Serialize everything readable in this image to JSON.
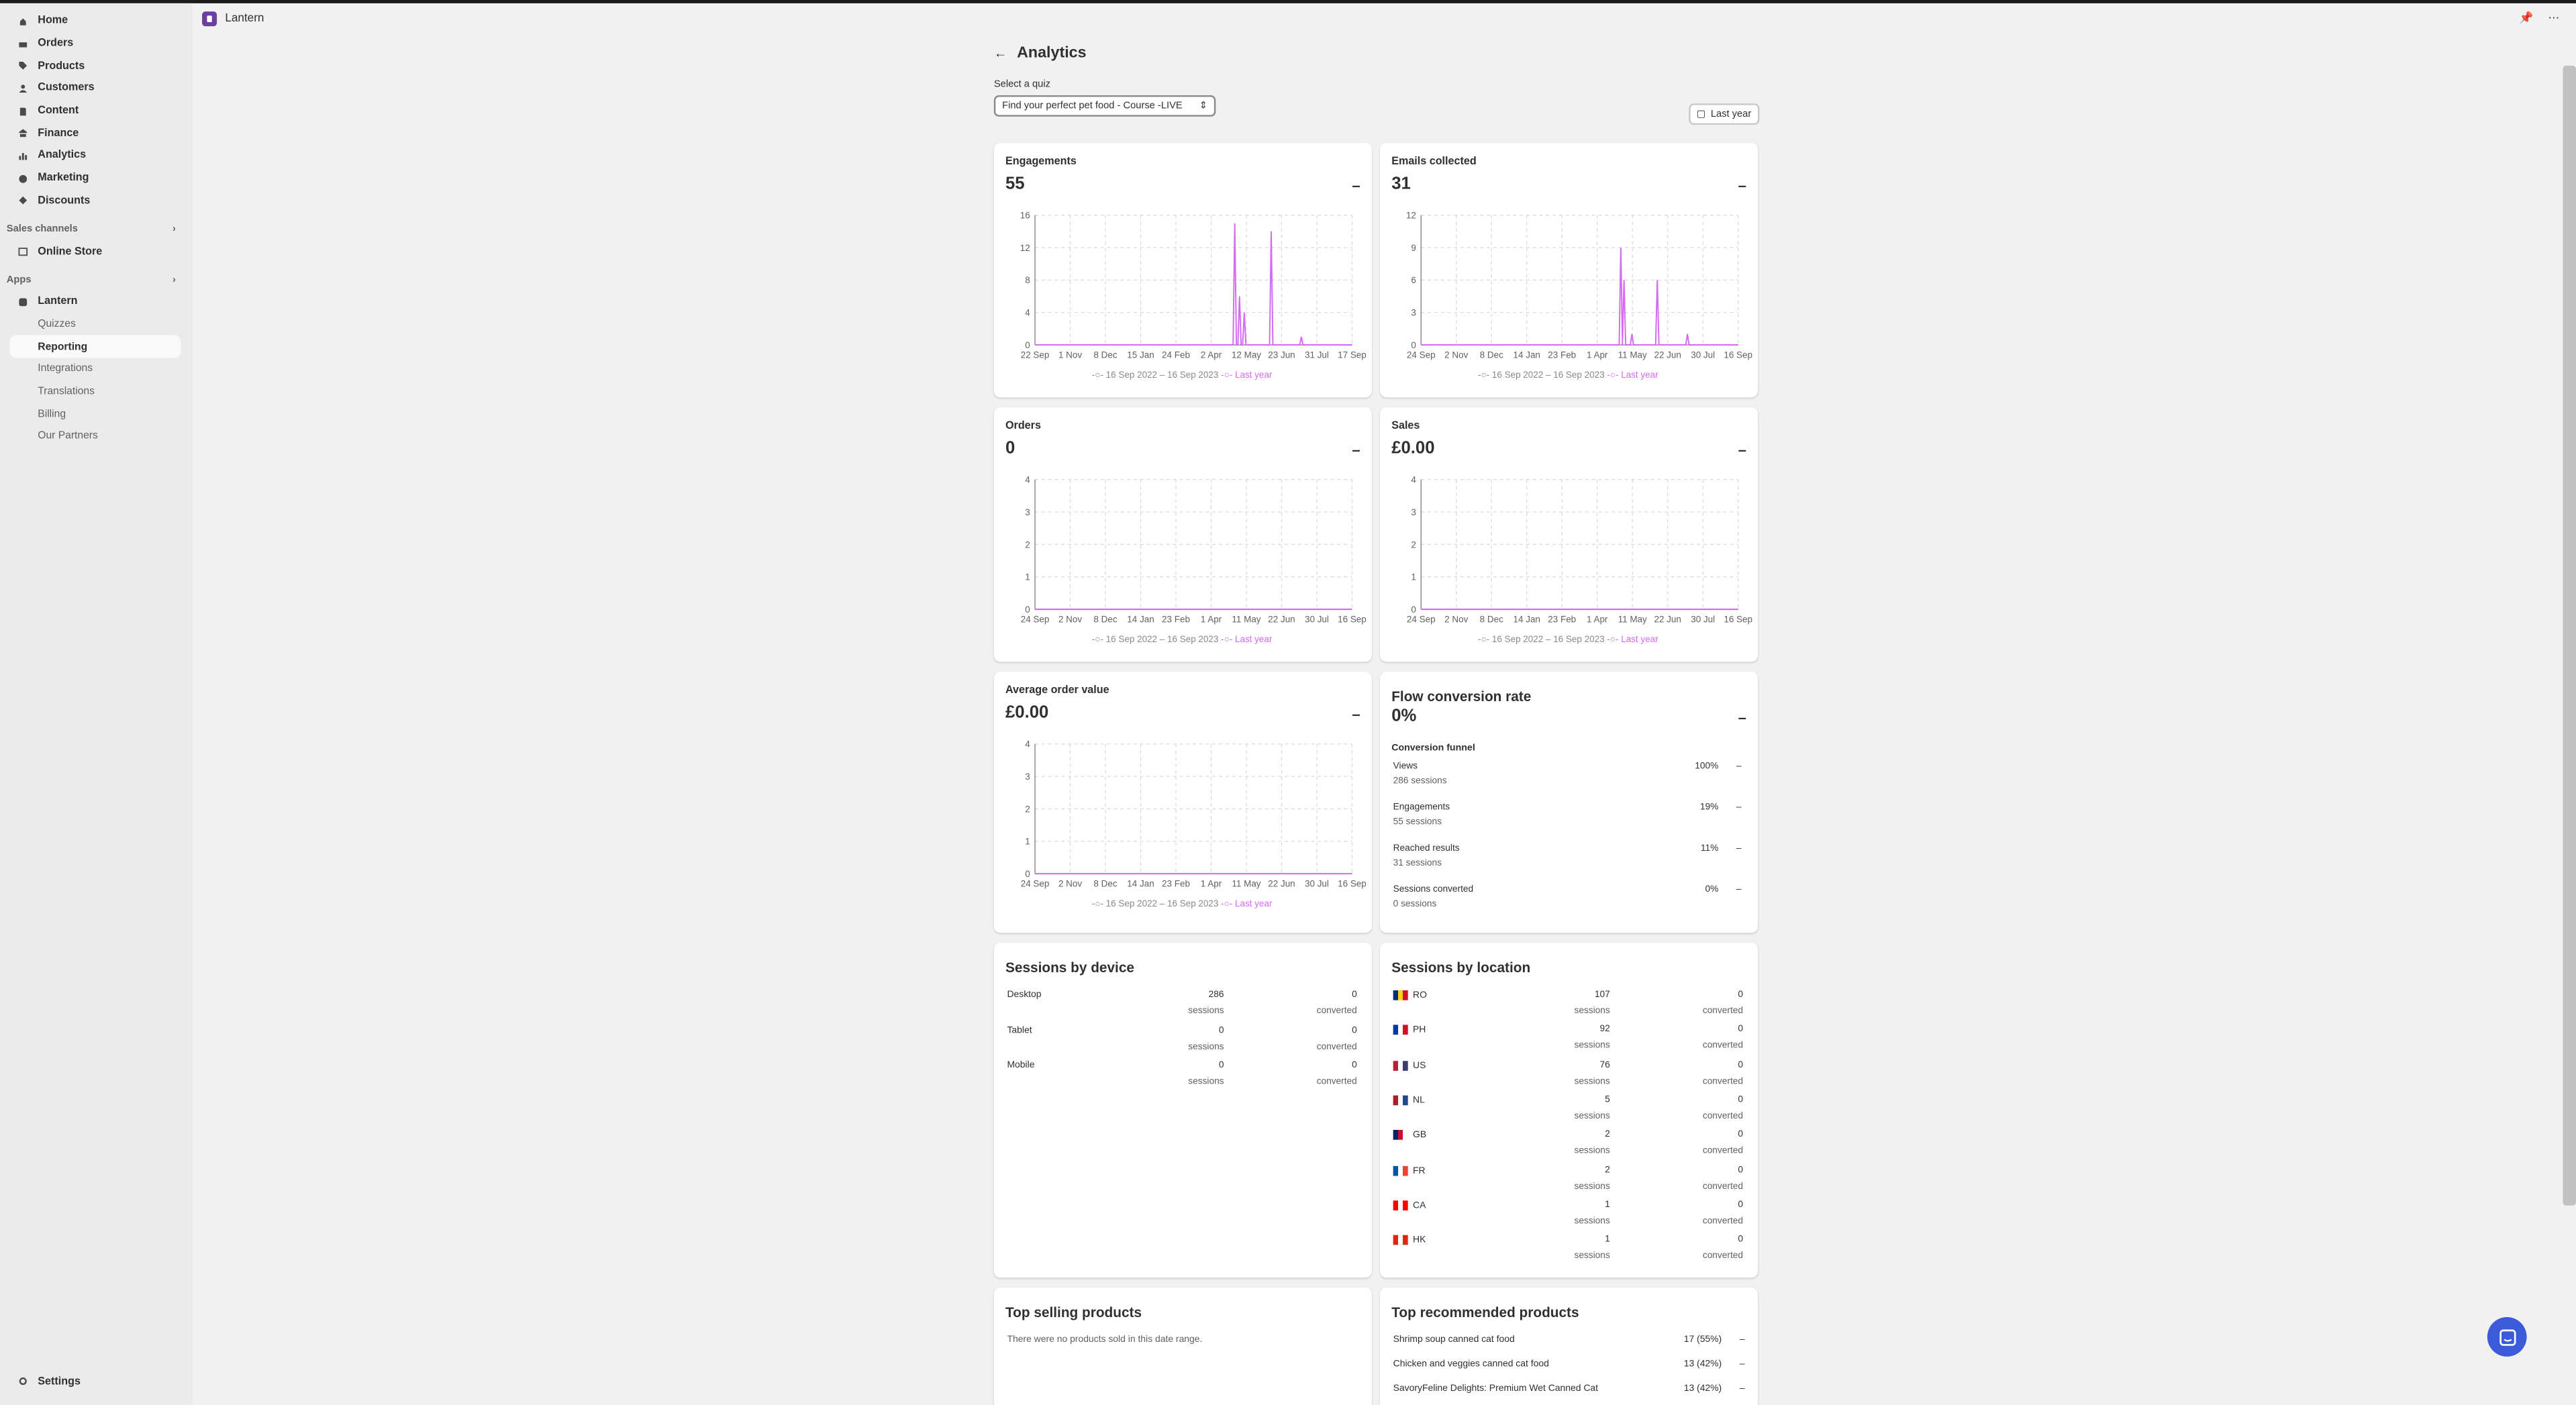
{
  "app": {
    "name": "Lantern"
  },
  "nav": {
    "items": [
      {
        "label": "Home",
        "icon": "home-icon"
      },
      {
        "label": "Orders",
        "icon": "inbox-icon"
      },
      {
        "label": "Products",
        "icon": "tag-icon"
      },
      {
        "label": "Customers",
        "icon": "person-icon"
      },
      {
        "label": "Content",
        "icon": "document-icon"
      },
      {
        "label": "Finance",
        "icon": "bank-icon"
      },
      {
        "label": "Analytics",
        "icon": "bar-chart-icon"
      },
      {
        "label": "Marketing",
        "icon": "target-icon"
      },
      {
        "label": "Discounts",
        "icon": "discount-icon"
      }
    ],
    "sales_channels": "Sales channels",
    "online_store": "Online Store",
    "apps": "Apps",
    "lantern": "Lantern",
    "sub": [
      "Quizzes",
      "Reporting",
      "Integrations",
      "Translations",
      "Billing",
      "Our Partners"
    ],
    "settings": "Settings"
  },
  "page": {
    "title": "Analytics",
    "select_label": "Select a quiz",
    "select_value": "Find your perfect pet food - Course -LIVE",
    "date_range": "Last year"
  },
  "legend": {
    "current": "16 Sep 2022 – 16 Sep 2023",
    "previous": "Last year"
  },
  "cards": {
    "engagements": {
      "title": "Engagements",
      "value": "55"
    },
    "emails": {
      "title": "Emails collected",
      "value": "31"
    },
    "orders": {
      "title": "Orders",
      "value": "0"
    },
    "sales": {
      "title": "Sales",
      "value": "£0.00"
    },
    "aov": {
      "title": "Average order value",
      "value": "£0.00"
    },
    "flow": {
      "title": "Flow conversion rate",
      "value": "0%",
      "funnel_title": "Conversion funnel",
      "rows": [
        {
          "label": "Views",
          "sub": "286 sessions",
          "pct": "100%"
        },
        {
          "label": "Engagements",
          "sub": "55 sessions",
          "pct": "19%"
        },
        {
          "label": "Reached results",
          "sub": "31 sessions",
          "pct": "11%"
        },
        {
          "label": "Sessions converted",
          "sub": "0 sessions",
          "pct": "0%"
        }
      ]
    }
  },
  "devices": {
    "title": "Sessions by device",
    "rows": [
      {
        "label": "Desktop",
        "sessions": "286",
        "converted": "0"
      },
      {
        "label": "Tablet",
        "sessions": "0",
        "converted": "0"
      },
      {
        "label": "Mobile",
        "sessions": "0",
        "converted": "0"
      }
    ],
    "sessions_word": "sessions",
    "converted_word": "converted"
  },
  "locations": {
    "title": "Sessions by location",
    "rows": [
      {
        "code": "RO",
        "sessions": "107",
        "converted": "0"
      },
      {
        "code": "PH",
        "sessions": "92",
        "converted": "0"
      },
      {
        "code": "US",
        "sessions": "76",
        "converted": "0"
      },
      {
        "code": "NL",
        "sessions": "5",
        "converted": "0"
      },
      {
        "code": "GB",
        "sessions": "2",
        "converted": "0"
      },
      {
        "code": "FR",
        "sessions": "2",
        "converted": "0"
      },
      {
        "code": "CA",
        "sessions": "1",
        "converted": "0"
      },
      {
        "code": "HK",
        "sessions": "1",
        "converted": "0"
      }
    ]
  },
  "top_selling": {
    "title": "Top selling products",
    "empty": "There were no products sold in this date range."
  },
  "top_recommended": {
    "title": "Top recommended products",
    "rows": [
      {
        "name": "Shrimp soup canned cat food",
        "val": "17 (55%)"
      },
      {
        "name": "Chicken and veggies canned cat food",
        "val": "13 (42%)"
      },
      {
        "name": "SavoryFeline Delights: Premium Wet Canned Cat",
        "val": "13 (42%)"
      }
    ]
  },
  "colors": {
    "current": "#b0b0b0",
    "previous": "#d46bf0"
  },
  "chart_data": [
    {
      "type": "line",
      "title": "Engagements",
      "ylim": [
        0,
        16
      ],
      "yticks": [
        "0",
        "4",
        "8",
        "12",
        "16"
      ],
      "xticks": [
        "22 Sep",
        "1 Nov",
        "8 Dec",
        "15 Jan",
        "24 Feb",
        "2 Apr",
        "12 May",
        "23 Jun",
        "31 Jul",
        "17 Sep"
      ],
      "series": [
        {
          "name": "Last year",
          "spike": [
            [
              0.63,
              15
            ],
            [
              0.645,
              6
            ],
            [
              0.66,
              4
            ],
            [
              0.745,
              14
            ],
            [
              0.84,
              1
            ]
          ]
        }
      ]
    },
    {
      "type": "line",
      "title": "Emails collected",
      "ylim": [
        0,
        12
      ],
      "yticks": [
        "0",
        "3",
        "6",
        "9",
        "12"
      ],
      "xticks": [
        "24 Sep",
        "2 Nov",
        "8 Dec",
        "14 Jan",
        "23 Feb",
        "1 Apr",
        "11 May",
        "22 Jun",
        "30 Jul",
        "16 Sep"
      ],
      "series": [
        {
          "name": "Last year",
          "spike": [
            [
              0.63,
              9
            ],
            [
              0.64,
              6
            ],
            [
              0.665,
              1
            ],
            [
              0.745,
              6
            ],
            [
              0.84,
              1
            ]
          ]
        }
      ]
    },
    {
      "type": "line",
      "title": "Orders",
      "ylim": [
        0,
        4
      ],
      "yticks": [
        "0",
        "1",
        "2",
        "3",
        "4"
      ],
      "xticks": [
        "24 Sep",
        "2 Nov",
        "8 Dec",
        "14 Jan",
        "23 Feb",
        "1 Apr",
        "11 May",
        "22 Jun",
        "30 Jul",
        "16 Sep"
      ],
      "series": [
        {
          "name": "Last year",
          "spike": []
        }
      ]
    },
    {
      "type": "line",
      "title": "Sales",
      "ylim": [
        0,
        4
      ],
      "yticks": [
        "0",
        "1",
        "2",
        "3",
        "4"
      ],
      "xticks": [
        "24 Sep",
        "2 Nov",
        "8 Dec",
        "14 Jan",
        "23 Feb",
        "1 Apr",
        "11 May",
        "22 Jun",
        "30 Jul",
        "16 Sep"
      ],
      "series": [
        {
          "name": "Last year",
          "spike": []
        }
      ]
    },
    {
      "type": "line",
      "title": "Average order value",
      "ylim": [
        0,
        4
      ],
      "yticks": [
        "0",
        "1",
        "2",
        "3",
        "4"
      ],
      "xticks": [
        "24 Sep",
        "2 Nov",
        "8 Dec",
        "14 Jan",
        "23 Feb",
        "1 Apr",
        "11 May",
        "22 Jun",
        "30 Jul",
        "16 Sep"
      ],
      "series": [
        {
          "name": "Last year",
          "spike": []
        }
      ]
    }
  ]
}
